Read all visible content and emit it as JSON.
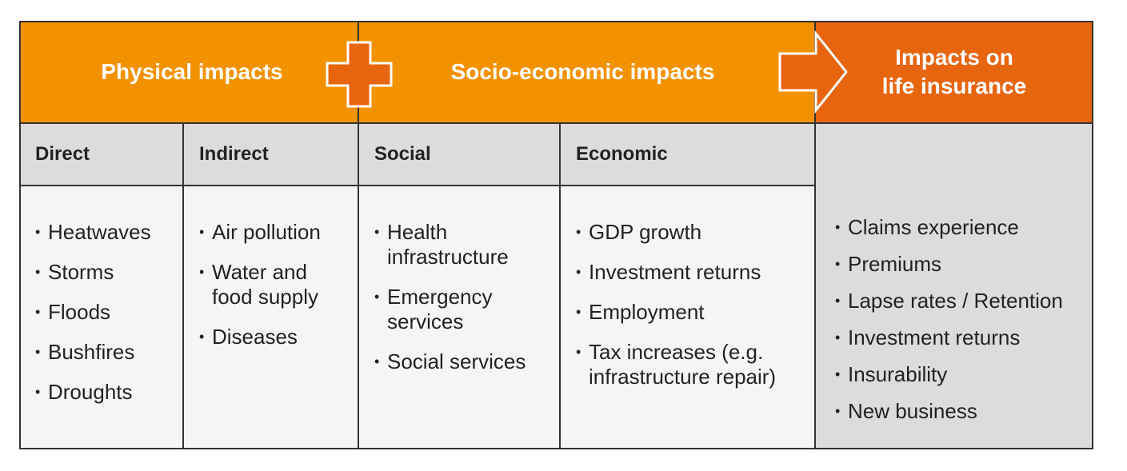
{
  "headers": {
    "physical": "Physical impacts",
    "socio": "Socio-economic impacts",
    "life_line1": "Impacts on",
    "life_line2": "life insurance"
  },
  "subheaders": {
    "direct": "Direct",
    "indirect": "Indirect",
    "social": "Social",
    "economic": "Economic"
  },
  "direct_items": [
    "Heatwaves",
    "Storms",
    "Floods",
    "Bushfires",
    "Droughts"
  ],
  "indirect_items": [
    "Air pollution",
    "Water and food supply",
    "Diseases"
  ],
  "social_items": [
    "Health infrastructure",
    "Emergency services",
    "Social services"
  ],
  "economic_items": [
    "GDP growth",
    "Investment returns",
    "Employment",
    "Tax increases (e.g. infrastructure repair)"
  ],
  "life_items": [
    "Claims experience",
    "Premiums",
    "Lapse rates / Retention",
    "Investment returns",
    "Insurability",
    "New business"
  ],
  "icons": {
    "plus": "plus-icon",
    "arrow": "arrow-right-icon"
  },
  "colors": {
    "orange": "#f39200",
    "dark_orange": "#e8650f",
    "grey": "#dcdcdc",
    "light_grey": "#f5f5f5"
  }
}
